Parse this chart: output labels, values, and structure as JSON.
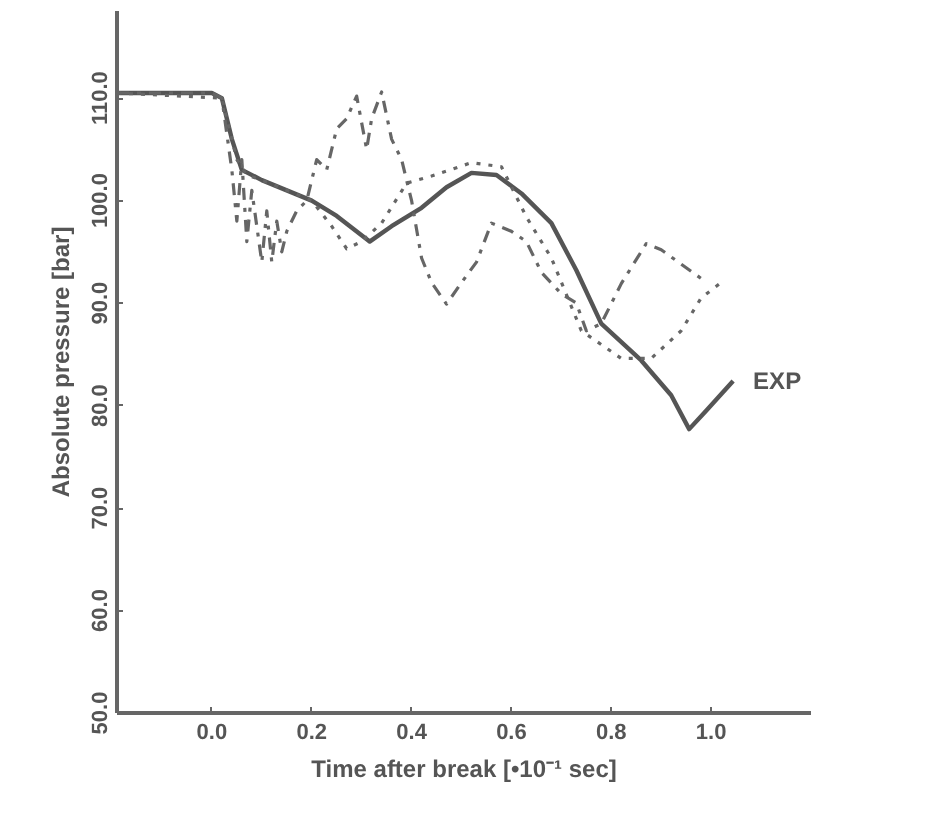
{
  "chart_data": {
    "type": "line",
    "xlabel": "Time after break [•10⁻¹ sec]",
    "ylabel": "Absolute pressure [bar]",
    "xlim": [
      -0.19,
      1.2
    ],
    "ylim": [
      50,
      118.5
    ],
    "xticks": [
      {
        "value": 0,
        "label": "0.0"
      },
      {
        "value": 0.2,
        "label": "0.2"
      },
      {
        "value": 0.4,
        "label": "0.4"
      },
      {
        "value": 0.6,
        "label": "0.6"
      },
      {
        "value": 0.8,
        "label": "0.8"
      },
      {
        "value": 1.0,
        "label": "1.0"
      }
    ],
    "yticks": [
      {
        "value": 50,
        "label": "50.0"
      },
      {
        "value": 60,
        "label": "60.0"
      },
      {
        "value": 70,
        "label": "70.0"
      },
      {
        "value": 80,
        "label": "80.0"
      },
      {
        "value": 90,
        "label": "90.0"
      },
      {
        "value": 100,
        "label": "100.0"
      },
      {
        "value": 110,
        "label": "110.0"
      }
    ],
    "grid": false,
    "series": [
      {
        "name": "EXP",
        "color": "#555555",
        "line_style": "solid",
        "x": [
          -0.19,
          0.0,
          0.02,
          0.04,
          0.06,
          0.1,
          0.2,
          0.25,
          0.316,
          0.36,
          0.42,
          0.47,
          0.52,
          0.57,
          0.62,
          0.68,
          0.73,
          0.78,
          0.86,
          0.92,
          0.956,
          0.99,
          1.044
        ],
        "values": [
          110.5,
          110.5,
          110,
          106,
          103,
          102,
          100,
          98.5,
          96,
          97.5,
          99.3,
          101.3,
          102.7,
          102.5,
          100.7,
          97.8,
          93.2,
          88,
          84.4,
          81,
          77.7,
          79.5,
          82.4
        ]
      },
      {
        "color": "#666666",
        "line_style": "dashed",
        "x": [
          -0.19,
          0.0,
          0.02,
          0.04,
          0.05,
          0.06,
          0.07,
          0.08,
          0.1,
          0.11,
          0.12,
          0.13,
          0.14,
          0.15,
          0.17,
          0.19,
          0.21,
          0.23,
          0.25,
          0.27,
          0.29,
          0.31,
          0.32,
          0.34,
          0.36,
          0.38,
          0.4,
          0.42,
          0.44,
          0.47,
          0.5,
          0.53,
          0.56,
          0.6,
          0.63,
          0.66,
          0.7,
          0.73,
          0.75,
          0.78,
          0.82,
          0.87,
          0.9,
          0.94,
          0.98
        ],
        "values": [
          110.5,
          110.5,
          110,
          103,
          98,
          104,
          96,
          101,
          94,
          99,
          94,
          98,
          95,
          97,
          99,
          100,
          104,
          103,
          107,
          108,
          110.2,
          105,
          108,
          110.6,
          106,
          104,
          100,
          94.4,
          92,
          89.9,
          92,
          94,
          97.8,
          97,
          96,
          93,
          90.9,
          90,
          87.3,
          88,
          91.9,
          95.8,
          95.2,
          93.8,
          92.4
        ]
      },
      {
        "color": "#666666",
        "line_style": "dotted",
        "x": [
          -0.19,
          0.02,
          0.05,
          0.07,
          0.1,
          0.15,
          0.2,
          0.24,
          0.27,
          0.3,
          0.34,
          0.39,
          0.44,
          0.52,
          0.58,
          0.63,
          0.68,
          0.74,
          0.82,
          0.88,
          0.94,
          0.98,
          1.02
        ],
        "values": [
          110.5,
          110,
          104,
          102.5,
          102,
          101,
          100,
          97.5,
          95.3,
          96,
          97.8,
          101.7,
          102.4,
          103.7,
          103.3,
          98.4,
          94.4,
          87.3,
          84.6,
          84.6,
          87.3,
          90.5,
          92
        ]
      }
    ]
  }
}
